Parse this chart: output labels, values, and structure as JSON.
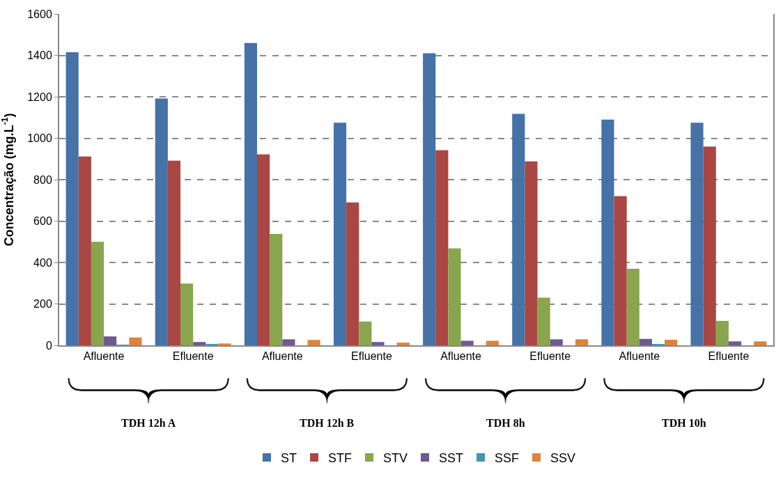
{
  "chart_data": {
    "type": "bar",
    "ylabel": "Concentração (mg.L$^{-1}$)",
    "categories": [
      "Afluente",
      "Efluente",
      "Afluente",
      "Efluente",
      "Afluente",
      "Efluente",
      "Afluente",
      "Efluente"
    ],
    "series": [
      {
        "name": "ST",
        "color": "#4572a7",
        "values": [
          1415,
          1192,
          1460,
          1075,
          1410,
          1118,
          1090,
          1075
        ]
      },
      {
        "name": "STF",
        "color": "#aa4643",
        "values": [
          912,
          892,
          922,
          690,
          942,
          888,
          720,
          960
        ]
      },
      {
        "name": "STV",
        "color": "#89a54e",
        "values": [
          500,
          298,
          538,
          115,
          468,
          230,
          370,
          118
        ]
      },
      {
        "name": "SST",
        "color": "#71588f",
        "values": [
          43,
          16,
          29,
          16,
          22,
          29,
          31,
          19
        ]
      },
      {
        "name": "SSF",
        "color": "#4198af",
        "values": [
          3,
          7,
          0,
          0,
          0,
          0,
          4,
          0
        ]
      },
      {
        "name": "SSV",
        "color": "#db843d",
        "values": [
          38,
          9,
          26,
          13,
          22,
          29,
          27,
          19
        ]
      }
    ],
    "annotations": [
      "TDH 12h A",
      "TDH 12h B",
      "TDH 8h",
      "TDH 10h"
    ],
    "ylim": [
      0,
      1600
    ],
    "yticks": [
      0,
      200,
      400,
      600,
      800,
      1000,
      1200,
      1400,
      1600
    ],
    "grid": "y",
    "legend": "bottom"
  }
}
